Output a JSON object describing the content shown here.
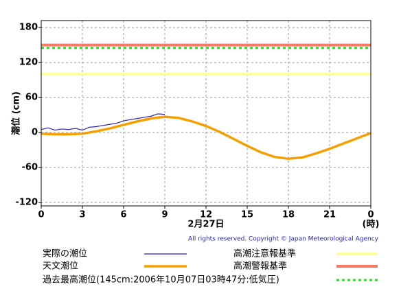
{
  "chart_data": {
    "type": "line",
    "y_label": "潮位 (cm)",
    "x_label": "2月27日",
    "x_unit": "(時)",
    "copyright": "All rights reserved. Copyright © Japan Meteorological Agency",
    "xlim": [
      0,
      24
    ],
    "xticks": [
      0,
      3,
      6,
      9,
      12,
      15,
      18,
      21,
      {
        "value": 24,
        "label": "0"
      }
    ],
    "ylim": [
      -126,
      192
    ],
    "yticks": [
      -120,
      -60,
      0,
      60,
      120,
      180
    ],
    "grid": true,
    "series": [
      {
        "name": "実際の潮位",
        "color": "#2a1fc0",
        "x": [
          0,
          0.5,
          1,
          1.5,
          2,
          2.5,
          3,
          3.5,
          4,
          4.5,
          5,
          5.5,
          6,
          6.5,
          7,
          7.5,
          8,
          8.5,
          9
        ],
        "values": [
          5,
          8,
          4,
          6,
          5,
          7,
          4,
          9,
          10,
          12,
          14,
          16,
          20,
          22,
          24,
          26,
          28,
          32,
          31
        ]
      },
      {
        "name": "天文潮位",
        "color": "#f5a000",
        "x": [
          0,
          1,
          2,
          3,
          4,
          5,
          6,
          7,
          8,
          9,
          10,
          11,
          12,
          13,
          14,
          15,
          16,
          17,
          18,
          19,
          20,
          21,
          22,
          23,
          24
        ],
        "values": [
          -2,
          -3,
          -3,
          -2,
          2,
          7,
          13,
          19,
          24,
          27,
          25,
          19,
          11,
          1,
          -11,
          -23,
          -34,
          -42,
          -45,
          -43,
          -36,
          -28,
          -19,
          -10,
          -1
        ]
      }
    ],
    "reference_lines": [
      {
        "name": "高潮注意報基準",
        "value": 100,
        "color": "#ffff99",
        "dashed": false
      },
      {
        "name": "高潮警報基準",
        "value": 150,
        "color": "#f87a62",
        "dashed": false
      },
      {
        "name": "過去最高潮位(145cm:2006年10月07日03時47分:低気圧)",
        "value": 145,
        "color": "#22dd22",
        "dashed": true
      }
    ]
  }
}
